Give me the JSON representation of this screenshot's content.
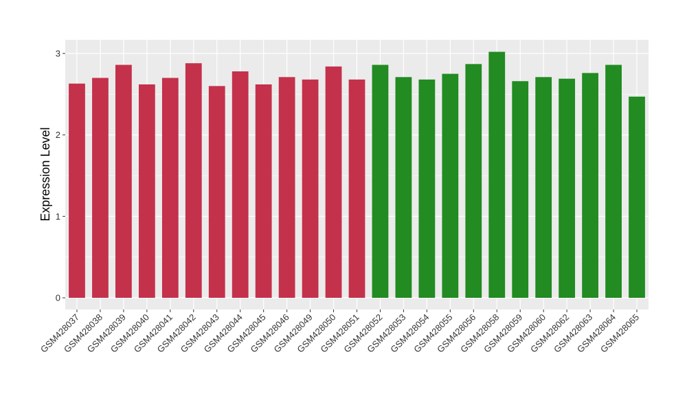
{
  "chart_data": {
    "type": "bar",
    "ylabel": "Expression Level",
    "xlabel": "",
    "ylim": [
      0,
      3.1
    ],
    "yticks": [
      0,
      1,
      2,
      3
    ],
    "grid": true,
    "background": "#EBEBEB",
    "gridline_color": "#FFFFFF",
    "categories": [
      "GSM428037",
      "GSM428038",
      "GSM428039",
      "GSM428040",
      "GSM428041",
      "GSM428042",
      "GSM428043",
      "GSM428044",
      "GSM428045",
      "GSM428046",
      "GSM428049",
      "GSM428050",
      "GSM428051",
      "GSM428052",
      "GSM428053",
      "GSM428054",
      "GSM428055",
      "GSM428056",
      "GSM428058",
      "GSM428059",
      "GSM428060",
      "GSM428062",
      "GSM428063",
      "GSM428064",
      "GSM428065"
    ],
    "values": [
      2.63,
      2.7,
      2.86,
      2.62,
      2.7,
      2.88,
      2.6,
      2.78,
      2.62,
      2.71,
      2.68,
      2.84,
      2.68,
      2.86,
      2.71,
      2.68,
      2.75,
      2.87,
      3.02,
      2.66,
      2.71,
      2.69,
      2.76,
      2.86,
      2.47
    ],
    "bar_colors": [
      "#C4314B",
      "#C4314B",
      "#C4314B",
      "#C4314B",
      "#C4314B",
      "#C4314B",
      "#C4314B",
      "#C4314B",
      "#C4314B",
      "#C4314B",
      "#C4314B",
      "#C4314B",
      "#C4314B",
      "#228B22",
      "#228B22",
      "#228B22",
      "#228B22",
      "#228B22",
      "#228B22",
      "#228B22",
      "#228B22",
      "#228B22",
      "#228B22",
      "#228B22",
      "#228B22"
    ]
  }
}
